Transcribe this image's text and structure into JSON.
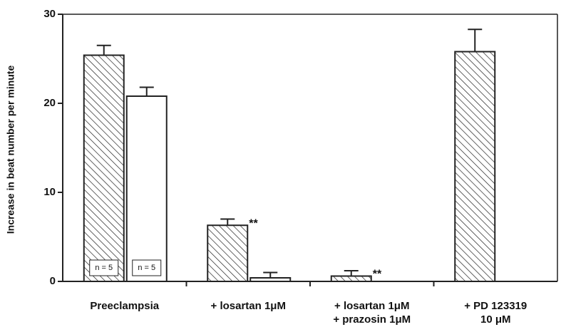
{
  "chart_data": {
    "type": "bar",
    "ylabel": "Increase in beat number per minute",
    "categories": [
      [
        "Preeclampsia"
      ],
      [
        "+ losartan 1μM"
      ],
      [
        "+ losartan 1μM",
        "+ prazosin 1μM"
      ],
      [
        "+ PD 123319",
        "10 μM"
      ]
    ],
    "series": [
      {
        "pattern": "hatch",
        "color": "#000000",
        "values": [
          25.4,
          6.3,
          0.6,
          25.8
        ],
        "errors": [
          1.1,
          0.7,
          0.6,
          2.5
        ]
      },
      {
        "pattern": "none",
        "color": "#ffffff",
        "values": [
          20.8,
          0.4,
          null,
          null
        ],
        "errors": [
          1.0,
          0.6,
          null,
          null
        ]
      }
    ],
    "annotations": [
      {
        "text": "**",
        "series": 0,
        "category": 1
      },
      {
        "text": "**",
        "series": 0,
        "category": 2
      },
      {
        "text": "n = 5",
        "series": 0,
        "category": 0,
        "inside": true
      },
      {
        "text": "n = 5",
        "series": 1,
        "category": 0,
        "inside": true
      }
    ],
    "ylim": [
      0,
      30
    ],
    "yticks": [
      0,
      10,
      20,
      30
    ],
    "grid": false
  }
}
